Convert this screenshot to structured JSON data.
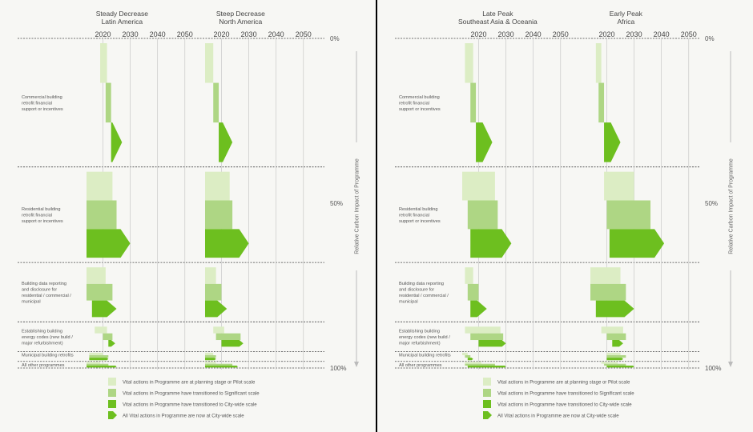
{
  "colors": {
    "planning_pilot": "#dcedc4",
    "significant": "#aed684",
    "city_wide": "#6dbf1f",
    "complete": "#6dbf1f",
    "divider": "#444444",
    "gridline": "#c8c8c8",
    "arrow": "#bbbbbb"
  },
  "legend": [
    {
      "key": "planning_pilot",
      "label": "Vital actions in Programme are at planning stage or Pilot scale",
      "shape": "square"
    },
    {
      "key": "significant",
      "label": "Vital actions in Programme have transitioned to Significant scale",
      "shape": "square"
    },
    {
      "key": "city_wide",
      "label": "Vital actions in Programme have transitioned to City-wide scale",
      "shape": "square"
    },
    {
      "key": "complete",
      "label": "All Vital actions in Programme are now at City-wide scale",
      "shape": "arrow"
    }
  ],
  "axis": {
    "y_title": "Relative Carbon Impact of Programme",
    "y_ticks": [
      {
        "label": "0%",
        "value": 0
      },
      {
        "label": "50%",
        "value": 50
      },
      {
        "label": "100%",
        "value": 100
      }
    ]
  },
  "chart_data": [
    {
      "type": "bar",
      "layout": "stacked-timeline",
      "title": [
        "Steady Decrease",
        "Latin America"
      ],
      "x_ticks": [
        2020,
        2030,
        2040,
        2050
      ],
      "xlim": [
        2014,
        2053
      ],
      "grid": true,
      "legend_position": "bottom",
      "rows": [
        {
          "label": [
            "Commercial building",
            "retrofit financial",
            "support or incentives"
          ],
          "y_start": 0,
          "y_end": 39,
          "bars": [
            {
              "stage": "planning_pilot",
              "start": 2019,
              "end": 2021.5
            },
            {
              "stage": "significant",
              "start": 2021,
              "end": 2023
            },
            {
              "stage": "city_wide",
              "start": 2023,
              "end": 2027,
              "arrow": true
            }
          ]
        },
        {
          "label": [
            "Residential building",
            "retrofit financial",
            "support or incentives"
          ],
          "y_start": 39,
          "y_end": 68,
          "bars": [
            {
              "stage": "planning_pilot",
              "start": 2014,
              "end": 2023.5
            },
            {
              "stage": "significant",
              "start": 2014,
              "end": 2025
            },
            {
              "stage": "city_wide",
              "start": 2014,
              "end": 2030,
              "arrow": true
            }
          ]
        },
        {
          "label": [
            "Building data reporting",
            "and disclosure for",
            "residential / commercial /",
            "municipal"
          ],
          "y_start": 68,
          "y_end": 86,
          "bars": [
            {
              "stage": "planning_pilot",
              "start": 2014,
              "end": 2021
            },
            {
              "stage": "significant",
              "start": 2014,
              "end": 2023.5
            },
            {
              "stage": "city_wide",
              "start": 2016,
              "end": 2025,
              "arrow": true
            }
          ]
        },
        {
          "label": [
            "Establishing building",
            "energy codes (new build /",
            "major refurbishment)"
          ],
          "y_start": 86,
          "y_end": 95,
          "bars": [
            {
              "stage": "planning_pilot",
              "start": 2017,
              "end": 2021.5
            },
            {
              "stage": "significant",
              "start": 2020,
              "end": 2023.5
            },
            {
              "stage": "city_wide",
              "start": 2022,
              "end": 2024.5,
              "arrow": true
            }
          ]
        },
        {
          "label": [
            "Municipal building retrofits"
          ],
          "y_start": 95,
          "y_end": 98,
          "bars": [
            {
              "stage": "planning_pilot",
              "start": 2015,
              "end": 2020
            },
            {
              "stage": "significant",
              "start": 2015,
              "end": 2022
            },
            {
              "stage": "city_wide",
              "start": 2015,
              "end": 2022,
              "arrow": true
            }
          ]
        },
        {
          "label": [
            "All other programmes"
          ],
          "y_start": 98,
          "y_end": 100,
          "bars": [
            {
              "stage": "planning_pilot",
              "start": 2014,
              "end": 2019
            },
            {
              "stage": "significant",
              "start": 2014,
              "end": 2022
            },
            {
              "stage": "city_wide",
              "start": 2014,
              "end": 2025,
              "arrow": true
            }
          ]
        }
      ]
    },
    {
      "type": "bar",
      "layout": "stacked-timeline",
      "title": [
        "Steep Decrease",
        "North America"
      ],
      "x_ticks": [
        2020,
        2030,
        2040,
        2050
      ],
      "xlim": [
        2014,
        2053
      ],
      "grid": true,
      "legend_position": "bottom",
      "rows": [
        {
          "label": [],
          "y_start": 0,
          "y_end": 39,
          "bars": [
            {
              "stage": "planning_pilot",
              "start": 2014,
              "end": 2017
            },
            {
              "stage": "significant",
              "start": 2017,
              "end": 2019
            },
            {
              "stage": "city_wide",
              "start": 2019,
              "end": 2024,
              "arrow": true
            }
          ]
        },
        {
          "label": [],
          "y_start": 39,
          "y_end": 68,
          "bars": [
            {
              "stage": "planning_pilot",
              "start": 2014,
              "end": 2023
            },
            {
              "stage": "significant",
              "start": 2014,
              "end": 2024
            },
            {
              "stage": "city_wide",
              "start": 2014,
              "end": 2030,
              "arrow": true
            }
          ]
        },
        {
          "label": [],
          "y_start": 68,
          "y_end": 86,
          "bars": [
            {
              "stage": "planning_pilot",
              "start": 2014,
              "end": 2018
            },
            {
              "stage": "significant",
              "start": 2014,
              "end": 2020
            },
            {
              "stage": "city_wide",
              "start": 2014,
              "end": 2022,
              "arrow": true
            }
          ]
        },
        {
          "label": [],
          "y_start": 86,
          "y_end": 95,
          "bars": [
            {
              "stage": "planning_pilot",
              "start": 2017,
              "end": 2021
            },
            {
              "stage": "significant",
              "start": 2018,
              "end": 2027
            },
            {
              "stage": "city_wide",
              "start": 2020,
              "end": 2028,
              "arrow": true
            }
          ]
        },
        {
          "label": [],
          "y_start": 95,
          "y_end": 98,
          "bars": [
            {
              "stage": "planning_pilot",
              "start": 2014,
              "end": 2017
            },
            {
              "stage": "significant",
              "start": 2014,
              "end": 2018
            },
            {
              "stage": "city_wide",
              "start": 2014,
              "end": 2018,
              "arrow": true
            }
          ]
        },
        {
          "label": [],
          "y_start": 98,
          "y_end": 100,
          "bars": [
            {
              "stage": "planning_pilot",
              "start": 2014,
              "end": 2018
            },
            {
              "stage": "significant",
              "start": 2014,
              "end": 2024
            },
            {
              "stage": "city_wide",
              "start": 2014,
              "end": 2026,
              "arrow": true
            }
          ]
        }
      ]
    },
    {
      "type": "bar",
      "layout": "stacked-timeline",
      "title": [
        "Late Peak",
        "Southeast Asia & Oceania"
      ],
      "x_ticks": [
        2020,
        2030,
        2040,
        2050
      ],
      "xlim": [
        2014,
        2053
      ],
      "grid": true,
      "legend_position": "bottom",
      "rows": [
        {
          "label": [
            "Commercial building",
            "retrofit financial",
            "support or incentives"
          ],
          "y_start": 0,
          "y_end": 39,
          "bars": [
            {
              "stage": "planning_pilot",
              "start": 2015,
              "end": 2018
            },
            {
              "stage": "significant",
              "start": 2017,
              "end": 2019
            },
            {
              "stage": "city_wide",
              "start": 2019,
              "end": 2025,
              "arrow": true
            }
          ]
        },
        {
          "label": [
            "Residential building",
            "retrofit financial",
            "support or incentives"
          ],
          "y_start": 39,
          "y_end": 68,
          "bars": [
            {
              "stage": "planning_pilot",
              "start": 2014,
              "end": 2026
            },
            {
              "stage": "significant",
              "start": 2016,
              "end": 2027
            },
            {
              "stage": "city_wide",
              "start": 2017,
              "end": 2032,
              "arrow": true
            }
          ]
        },
        {
          "label": [
            "Building data reporting",
            "and disclosure for",
            "residential / commercial /",
            "municipal"
          ],
          "y_start": 68,
          "y_end": 86,
          "bars": [
            {
              "stage": "planning_pilot",
              "start": 2015,
              "end": 2018
            },
            {
              "stage": "significant",
              "start": 2016,
              "end": 2020
            },
            {
              "stage": "city_wide",
              "start": 2017,
              "end": 2023,
              "arrow": true
            }
          ]
        },
        {
          "label": [
            "Establishing building",
            "energy codes (new build /",
            "major refurbishment)"
          ],
          "y_start": 86,
          "y_end": 95,
          "bars": [
            {
              "stage": "planning_pilot",
              "start": 2015,
              "end": 2028
            },
            {
              "stage": "significant",
              "start": 2017,
              "end": 2029
            },
            {
              "stage": "city_wide",
              "start": 2020,
              "end": 2030,
              "arrow": true
            }
          ]
        },
        {
          "label": [
            "Municipal building retrofits"
          ],
          "y_start": 95,
          "y_end": 98,
          "bars": [
            {
              "stage": "planning_pilot",
              "start": 2014,
              "end": 2016
            },
            {
              "stage": "significant",
              "start": 2015,
              "end": 2017
            },
            {
              "stage": "city_wide",
              "start": 2016,
              "end": 2018,
              "arrow": true
            }
          ]
        },
        {
          "label": [
            "All other programmes"
          ],
          "y_start": 98,
          "y_end": 100,
          "bars": [
            {
              "stage": "planning_pilot",
              "start": 2015,
              "end": 2021
            },
            {
              "stage": "significant",
              "start": 2015,
              "end": 2026
            },
            {
              "stage": "city_wide",
              "start": 2016,
              "end": 2030,
              "arrow": true
            }
          ]
        }
      ]
    },
    {
      "type": "bar",
      "layout": "stacked-timeline",
      "title": [
        "Early Peak",
        "Africa"
      ],
      "x_ticks": [
        2020,
        2030,
        2040,
        2050
      ],
      "xlim": [
        2014,
        2053
      ],
      "grid": true,
      "legend_position": "bottom",
      "rows": [
        {
          "label": [],
          "y_start": 0,
          "y_end": 39,
          "bars": [
            {
              "stage": "planning_pilot",
              "start": 2016,
              "end": 2018
            },
            {
              "stage": "significant",
              "start": 2017,
              "end": 2019
            },
            {
              "stage": "city_wide",
              "start": 2019,
              "end": 2025,
              "arrow": true
            }
          ]
        },
        {
          "label": [],
          "y_start": 39,
          "y_end": 68,
          "bars": [
            {
              "stage": "planning_pilot",
              "start": 2019,
              "end": 2030
            },
            {
              "stage": "significant",
              "start": 2020,
              "end": 2036
            },
            {
              "stage": "city_wide",
              "start": 2021,
              "end": 2041,
              "arrow": true
            }
          ]
        },
        {
          "label": [],
          "y_start": 68,
          "y_end": 86,
          "bars": [
            {
              "stage": "planning_pilot",
              "start": 2014,
              "end": 2025
            },
            {
              "stage": "significant",
              "start": 2014,
              "end": 2027
            },
            {
              "stage": "city_wide",
              "start": 2016,
              "end": 2030,
              "arrow": true
            }
          ]
        },
        {
          "label": [],
          "y_start": 86,
          "y_end": 95,
          "bars": [
            {
              "stage": "planning_pilot",
              "start": 2018,
              "end": 2026
            },
            {
              "stage": "significant",
              "start": 2020,
              "end": 2027
            },
            {
              "stage": "city_wide",
              "start": 2022,
              "end": 2026,
              "arrow": true
            }
          ]
        },
        {
          "label": [],
          "y_start": 95,
          "y_end": 98,
          "bars": [
            {
              "stage": "planning_pilot",
              "start": 2020,
              "end": 2025
            },
            {
              "stage": "significant",
              "start": 2020,
              "end": 2027
            },
            {
              "stage": "city_wide",
              "start": 2020,
              "end": 2026,
              "arrow": true
            }
          ]
        },
        {
          "label": [],
          "y_start": 98,
          "y_end": 100,
          "bars": [
            {
              "stage": "planning_pilot",
              "start": 2018,
              "end": 2024
            },
            {
              "stage": "significant",
              "start": 2019,
              "end": 2027
            },
            {
              "stage": "city_wide",
              "start": 2020,
              "end": 2030,
              "arrow": true
            }
          ]
        }
      ]
    }
  ]
}
